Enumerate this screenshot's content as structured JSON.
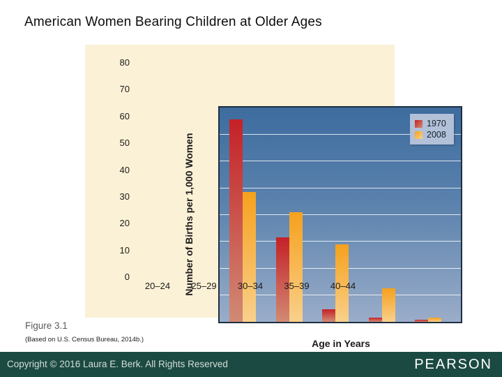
{
  "page": {
    "title": "American Women Bearing Children at Older Ages",
    "figure_label": "Figure 3.1",
    "source_note": "(Based on U.S. Census Bureau, 2014b.)",
    "footer": {
      "copyright": "Copyright © 2016 Laura E. Berk. All Rights Reserved",
      "brand": "PEARSON"
    }
  },
  "colors": {
    "panel_background": "#fbf1d6",
    "plot_gradient_top": "#3d6c9e",
    "plot_gradient_bottom": "#9aadc9",
    "plot_border": "#1e2f42",
    "gridline": "#ffffff",
    "legend_background": "#b2c0d8",
    "footer_background": "#1b4a42",
    "series_1970_top": "#c42127",
    "series_1970_bottom": "#d18a74",
    "series_2008_top": "#f5a11d",
    "series_2008_bottom": "#f9d08b"
  },
  "chart_data": {
    "type": "bar",
    "title": "",
    "categories": [
      "20–24",
      "25–29",
      "30–34",
      "35–39",
      "40–44"
    ],
    "series": [
      {
        "name": "1970",
        "color_top": "#c42127",
        "color_bottom": "#d18a74",
        "values": [
          75.5,
          31.5,
          4.7,
          1.5,
          0.7
        ]
      },
      {
        "name": "2008",
        "color_top": "#f5a11d",
        "color_bottom": "#f9d08b",
        "values": [
          48.5,
          41,
          29,
          12.5,
          1.6
        ]
      }
    ],
    "xlabel": "Age in Years",
    "ylabel": "Number of Births per 1,000 Women",
    "ylim": [
      0,
      80
    ],
    "ytick_step": 10,
    "yticks": [
      0,
      10,
      20,
      30,
      40,
      50,
      60,
      70,
      80
    ],
    "legend_position": "top-right",
    "grid": true
  }
}
